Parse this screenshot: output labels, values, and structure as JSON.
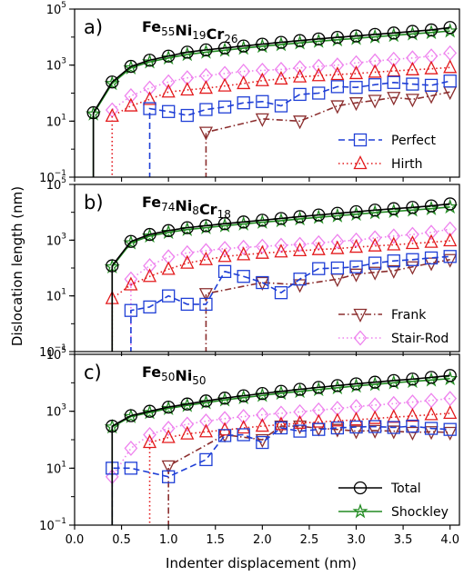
{
  "chart_data": {
    "type": "line",
    "xlabel": "Indenter displacement (nm)",
    "ylabel": "Dislocation length (nm)",
    "xlim": [
      0,
      4.1
    ],
    "ylim": [
      0.1,
      100000
    ],
    "yscale": "log",
    "xticks": [
      "0.0",
      "0.5",
      "1.0",
      "1.5",
      "2.0",
      "2.5",
      "3.0",
      "3.5",
      "4.0"
    ],
    "yticks": [
      {
        "value": 0.1,
        "base": "10",
        "exp": "−1"
      },
      {
        "value": 10,
        "base": "10",
        "exp": "1"
      },
      {
        "value": 1000,
        "base": "10",
        "exp": "3"
      },
      {
        "value": 100000,
        "base": "10",
        "exp": "5"
      }
    ],
    "grid": false,
    "series_styles": {
      "Total": {
        "color": "#000000",
        "marker": "circle",
        "dash": "solid"
      },
      "Shockley": {
        "color": "#228B22",
        "marker": "star",
        "dash": "solid"
      },
      "Perfect": {
        "color": "#1f3fd6",
        "marker": "square",
        "dash": "dashed"
      },
      "Hirth": {
        "color": "#e31a1c",
        "marker": "triangle-up",
        "dash": "dotted"
      },
      "Frank": {
        "color": "#8b2e2e",
        "marker": "triangle-down",
        "dash": "dashdot"
      },
      "Stair-Rod": {
        "color": "#ee82ee",
        "marker": "diamond",
        "dash": "dotted"
      }
    },
    "panels": [
      {
        "label": "a)",
        "composition": [
          {
            "el": "Fe",
            "n": "55"
          },
          {
            "el": "Ni",
            "n": "19"
          },
          {
            "el": "Cr",
            "n": "26"
          }
        ],
        "legend": {
          "entries": [
            "Perfect",
            "Hirth"
          ],
          "position": "lower-right"
        },
        "series": [
          {
            "name": "Total",
            "x": [
              0.2,
              0.4,
              0.6,
              0.8,
              1.0,
              1.2,
              1.4,
              1.6,
              1.8,
              2.0,
              2.2,
              2.4,
              2.6,
              2.8,
              3.0,
              3.2,
              3.4,
              3.6,
              3.8,
              4.0
            ],
            "y": [
              20,
              250,
              900,
              1500,
              2100,
              2900,
              3500,
              4100,
              4800,
              5600,
              6500,
              7500,
              8600,
              9800,
              11000,
              12500,
              14000,
              16000,
              18000,
              22000
            ]
          },
          {
            "name": "Shockley",
            "x": [
              0.2,
              0.4,
              0.6,
              0.8,
              1.0,
              1.2,
              1.4,
              1.6,
              1.8,
              2.0,
              2.2,
              2.4,
              2.6,
              2.8,
              3.0,
              3.2,
              3.4,
              3.6,
              3.8,
              4.0
            ],
            "y": [
              18,
              220,
              800,
              1300,
              1800,
              2400,
              2900,
              3400,
              4000,
              4700,
              5400,
              6200,
              7100,
              8000,
              9000,
              10200,
              11500,
              13000,
              14500,
              16500
            ]
          },
          {
            "name": "Perfect",
            "x": [
              0.8,
              1.0,
              1.2,
              1.4,
              1.6,
              1.8,
              2.0,
              2.2,
              2.4,
              2.6,
              2.8,
              3.0,
              3.2,
              3.4,
              3.6,
              3.8,
              4.0
            ],
            "y": [
              28,
              22,
              16,
              26,
              32,
              45,
              50,
              35,
              90,
              100,
              170,
              160,
              200,
              240,
              210,
              190,
              270
            ]
          },
          {
            "name": "Hirth",
            "x": [
              0.4,
              0.6,
              0.8,
              1.0,
              1.2,
              1.4,
              1.6,
              1.8,
              2.0,
              2.2,
              2.4,
              2.6,
              2.8,
              3.0,
              3.2,
              3.4,
              3.6,
              3.8,
              4.0
            ],
            "y": [
              15,
              35,
              60,
              110,
              130,
              150,
              180,
              220,
              280,
              320,
              380,
              420,
              460,
              500,
              560,
              620,
              680,
              740,
              820
            ]
          },
          {
            "name": "Frank",
            "x": [
              1.4,
              2.0,
              2.4,
              2.8,
              3.0,
              3.2,
              3.4,
              3.6,
              3.8,
              4.0
            ],
            "y": [
              4,
              12,
              10,
              35,
              45,
              55,
              70,
              60,
              80,
              110
            ]
          },
          {
            "name": "Stair-Rod",
            "x": [
              0.4,
              0.6,
              0.8,
              1.0,
              1.2,
              1.4,
              1.6,
              1.8,
              2.0,
              2.2,
              2.4,
              2.6,
              2.8,
              3.0,
              3.2,
              3.4,
              3.6,
              3.8,
              4.0
            ],
            "y": [
              25,
              80,
              150,
              250,
              350,
              420,
              500,
              600,
              650,
              700,
              800,
              900,
              1000,
              1200,
              1400,
              1600,
              1800,
              2100,
              2700
            ]
          }
        ]
      },
      {
        "label": "b)",
        "composition": [
          {
            "el": "Fe",
            "n": "74"
          },
          {
            "el": "Ni",
            "n": "8"
          },
          {
            "el": "Cr",
            "n": "18"
          }
        ],
        "legend": {
          "entries": [
            "Frank",
            "Stair-Rod"
          ],
          "position": "lower-right"
        },
        "series": [
          {
            "name": "Total",
            "x": [
              0.4,
              0.6,
              0.8,
              1.0,
              1.2,
              1.4,
              1.6,
              1.8,
              2.0,
              2.2,
              2.4,
              2.6,
              2.8,
              3.0,
              3.2,
              3.4,
              3.6,
              3.8,
              4.0
            ],
            "y": [
              120,
              900,
              1600,
              2200,
              2800,
              3300,
              3900,
              4500,
              5200,
              6000,
              7000,
              8000,
              9200,
              10500,
              12000,
              13500,
              15000,
              17000,
              20000
            ]
          },
          {
            "name": "Shockley",
            "x": [
              0.4,
              0.6,
              0.8,
              1.0,
              1.2,
              1.4,
              1.6,
              1.8,
              2.0,
              2.2,
              2.4,
              2.6,
              2.8,
              3.0,
              3.2,
              3.4,
              3.6,
              3.8,
              4.0
            ],
            "y": [
              110,
              800,
              1400,
              1900,
              2400,
              2800,
              3300,
              3800,
              4400,
              5000,
              5800,
              6600,
              7500,
              8500,
              9700,
              10800,
              12000,
              13500,
              15500
            ]
          },
          {
            "name": "Perfect",
            "x": [
              0.6,
              0.8,
              1.0,
              1.2,
              1.4,
              1.6,
              1.8,
              2.0,
              2.2,
              2.4,
              2.6,
              2.8,
              3.0,
              3.2,
              3.4,
              3.6,
              3.8,
              4.0
            ],
            "y": [
              3,
              4,
              10,
              5,
              5,
              75,
              50,
              30,
              13,
              40,
              95,
              100,
              110,
              150,
              180,
              200,
              230,
              260
            ]
          },
          {
            "name": "Hirth",
            "x": [
              0.4,
              0.6,
              0.8,
              1.0,
              1.2,
              1.4,
              1.6,
              1.8,
              2.0,
              2.2,
              2.4,
              2.6,
              2.8,
              3.0,
              3.2,
              3.4,
              3.6,
              3.8,
              4.0
            ],
            "y": [
              8,
              25,
              50,
              90,
              150,
              200,
              260,
              300,
              340,
              380,
              420,
              460,
              500,
              560,
              620,
              680,
              760,
              840,
              950
            ]
          },
          {
            "name": "Frank",
            "x": [
              1.4,
              2.0,
              2.4,
              2.8,
              3.0,
              3.2,
              3.4,
              3.6,
              3.8,
              4.0
            ],
            "y": [
              12,
              30,
              25,
              40,
              60,
              70,
              80,
              110,
              150,
              200
            ]
          },
          {
            "name": "Stair-Rod",
            "x": [
              0.6,
              0.8,
              1.0,
              1.2,
              1.4,
              1.6,
              1.8,
              2.0,
              2.2,
              2.4,
              2.6,
              2.8,
              3.0,
              3.2,
              3.4,
              3.6,
              3.8,
              4.0
            ],
            "y": [
              40,
              120,
              250,
              350,
              420,
              500,
              550,
              600,
              650,
              700,
              800,
              900,
              1000,
              1200,
              1400,
              1600,
              1900,
              2500
            ]
          }
        ]
      },
      {
        "label": "c)",
        "composition": [
          {
            "el": "Fe",
            "n": "50"
          },
          {
            "el": "Ni",
            "n": "50"
          }
        ],
        "legend": {
          "entries": [
            "Total",
            "Shockley"
          ],
          "position": "lower-right"
        },
        "series": [
          {
            "name": "Total",
            "x": [
              0.4,
              0.6,
              0.8,
              1.0,
              1.2,
              1.4,
              1.6,
              1.8,
              2.0,
              2.2,
              2.4,
              2.6,
              2.8,
              3.0,
              3.2,
              3.4,
              3.6,
              3.8,
              4.0
            ],
            "y": [
              300,
              700,
              1000,
              1400,
              1800,
              2300,
              2900,
              3500,
              4200,
              5000,
              5900,
              6900,
              8000,
              9200,
              10500,
              12000,
              13500,
              15500,
              18000
            ]
          },
          {
            "name": "Shockley",
            "x": [
              0.4,
              0.6,
              0.8,
              1.0,
              1.2,
              1.4,
              1.6,
              1.8,
              2.0,
              2.2,
              2.4,
              2.6,
              2.8,
              3.0,
              3.2,
              3.4,
              3.6,
              3.8,
              4.0
            ],
            "y": [
              280,
              650,
              900,
              1250,
              1600,
              2000,
              2500,
              3000,
              3600,
              4300,
              5000,
              5800,
              6700,
              7700,
              8800,
              10000,
              11200,
              12500,
              14000
            ]
          },
          {
            "name": "Perfect",
            "x": [
              0.4,
              0.6,
              1.0,
              1.4,
              1.6,
              1.8,
              2.0,
              2.2,
              2.4,
              2.6,
              2.8,
              3.0,
              3.2,
              3.4,
              3.6,
              3.8,
              4.0
            ],
            "y": [
              10,
              10,
              5,
              20,
              140,
              150,
              80,
              260,
              200,
              230,
              260,
              280,
              290,
              270,
              300,
              250,
              230
            ]
          },
          {
            "name": "Hirth",
            "x": [
              0.8,
              1.0,
              1.2,
              1.4,
              1.6,
              1.8,
              2.0,
              2.2,
              2.4,
              2.6,
              2.8,
              3.0,
              3.2,
              3.4,
              3.6,
              3.8,
              4.0
            ],
            "y": [
              80,
              120,
              160,
              190,
              220,
              260,
              300,
              340,
              380,
              420,
              460,
              500,
              560,
              620,
              680,
              760,
              850
            ]
          },
          {
            "name": "Frank",
            "x": [
              1.0,
              1.6,
              2.0,
              2.2,
              2.4,
              2.6,
              2.8,
              3.0,
              3.2,
              3.4,
              3.6,
              3.8,
              4.0
            ],
            "y": [
              12,
              150,
              100,
              300,
              300,
              250,
              230,
              200,
              210,
              200,
              180,
              190,
              180
            ]
          },
          {
            "name": "Stair-Rod",
            "x": [
              0.4,
              0.6,
              0.8,
              1.0,
              1.2,
              1.4,
              1.6,
              1.8,
              2.0,
              2.2,
              2.4,
              2.6,
              2.8,
              3.0,
              3.2,
              3.4,
              3.6,
              3.8,
              4.0
            ],
            "y": [
              5,
              50,
              150,
              250,
              350,
              450,
              550,
              650,
              750,
              850,
              950,
              1100,
              1250,
              1450,
              1650,
              1850,
              2100,
              2400,
              2800
            ]
          }
        ]
      }
    ]
  }
}
